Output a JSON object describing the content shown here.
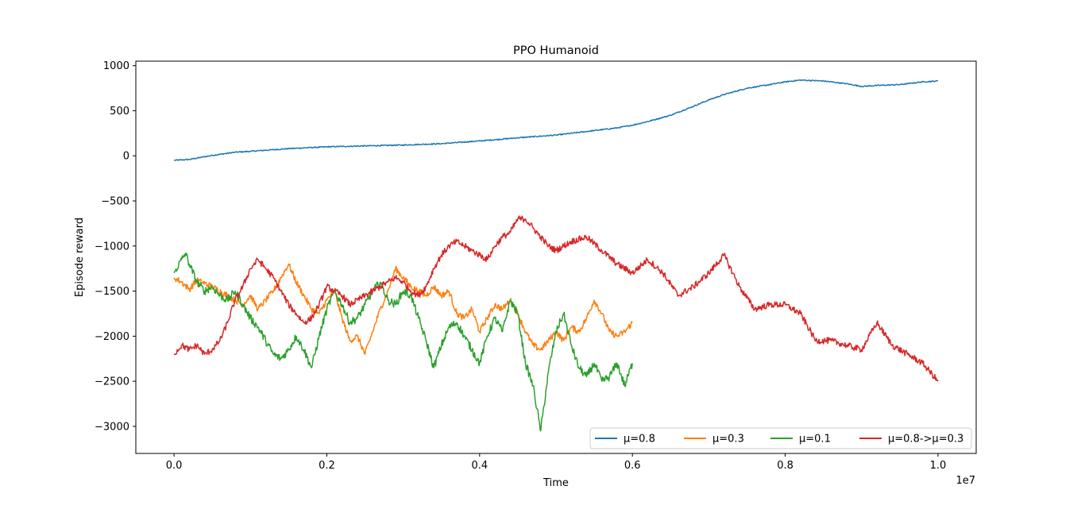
{
  "chart_data": {
    "type": "line",
    "title": "PPO Humanoid",
    "xlabel": "Time",
    "ylabel": "Episode reward",
    "x_offset_label": "1e7",
    "xlim": [
      -0.05,
      1.05
    ],
    "ylim": [
      -3300,
      1050
    ],
    "x_ticks": [
      0.0,
      0.2,
      0.4,
      0.6,
      0.8,
      1.0
    ],
    "x_tick_labels": [
      "0.0",
      "0.2",
      "0.4",
      "0.6",
      "0.8",
      "1.0"
    ],
    "y_ticks": [
      1000,
      500,
      0,
      -500,
      -1000,
      -1500,
      -2000,
      -2500,
      -3000
    ],
    "y_tick_labels": [
      "1000",
      "500",
      "0",
      "−500",
      "−1000",
      "−1500",
      "−2000",
      "−2500",
      "−3000"
    ],
    "grid": false,
    "legend_position": "lower-right",
    "legend_columns": 4,
    "series": [
      {
        "name": "μ=0.8",
        "color": "#1f77b4",
        "x": [
          0.0,
          0.02,
          0.05,
          0.08,
          0.1,
          0.15,
          0.2,
          0.25,
          0.3,
          0.35,
          0.4,
          0.45,
          0.5,
          0.55,
          0.58,
          0.6,
          0.62,
          0.65,
          0.68,
          0.7,
          0.72,
          0.75,
          0.78,
          0.8,
          0.82,
          0.85,
          0.88,
          0.9,
          0.92,
          0.95,
          0.98,
          1.0
        ],
        "y": [
          -50,
          -40,
          5,
          40,
          50,
          80,
          100,
          110,
          120,
          135,
          165,
          200,
          230,
          280,
          310,
          340,
          380,
          450,
          550,
          620,
          680,
          750,
          790,
          820,
          840,
          830,
          800,
          770,
          780,
          790,
          820,
          830
        ]
      },
      {
        "name": "μ=0.3",
        "color": "#ff7f0e",
        "x": [
          0.0,
          0.01,
          0.02,
          0.03,
          0.05,
          0.07,
          0.08,
          0.09,
          0.1,
          0.11,
          0.12,
          0.13,
          0.14,
          0.15,
          0.16,
          0.17,
          0.18,
          0.19,
          0.2,
          0.21,
          0.22,
          0.23,
          0.24,
          0.25,
          0.26,
          0.27,
          0.28,
          0.29,
          0.3,
          0.31,
          0.32,
          0.33,
          0.34,
          0.35,
          0.36,
          0.37,
          0.38,
          0.39,
          0.4,
          0.41,
          0.42,
          0.43,
          0.44,
          0.45,
          0.46,
          0.47,
          0.48,
          0.49,
          0.5,
          0.51,
          0.52,
          0.53,
          0.54,
          0.55,
          0.56,
          0.57,
          0.58,
          0.59,
          0.6
        ],
        "y": [
          -1350,
          -1400,
          -1480,
          -1380,
          -1450,
          -1550,
          -1600,
          -1650,
          -1550,
          -1700,
          -1600,
          -1500,
          -1350,
          -1200,
          -1400,
          -1550,
          -1700,
          -1750,
          -1600,
          -1500,
          -1800,
          -2050,
          -2000,
          -2200,
          -1950,
          -1700,
          -1500,
          -1250,
          -1350,
          -1450,
          -1500,
          -1550,
          -1450,
          -1550,
          -1500,
          -1750,
          -1800,
          -1700,
          -1950,
          -1800,
          -1650,
          -1700,
          -1600,
          -1750,
          -1950,
          -2100,
          -2150,
          -2050,
          -1950,
          -2050,
          -1900,
          -1950,
          -1800,
          -1600,
          -1750,
          -1950,
          -2000,
          -1950,
          -1850
        ]
      },
      {
        "name": "μ=0.1",
        "color": "#2ca02c",
        "x": [
          0.0,
          0.01,
          0.015,
          0.02,
          0.03,
          0.04,
          0.05,
          0.06,
          0.07,
          0.08,
          0.09,
          0.1,
          0.11,
          0.12,
          0.13,
          0.14,
          0.15,
          0.16,
          0.17,
          0.18,
          0.19,
          0.2,
          0.21,
          0.22,
          0.23,
          0.24,
          0.25,
          0.26,
          0.27,
          0.28,
          0.29,
          0.3,
          0.31,
          0.32,
          0.33,
          0.34,
          0.35,
          0.36,
          0.37,
          0.38,
          0.39,
          0.4,
          0.41,
          0.42,
          0.43,
          0.44,
          0.45,
          0.46,
          0.47,
          0.48,
          0.49,
          0.5,
          0.51,
          0.52,
          0.53,
          0.54,
          0.55,
          0.56,
          0.57,
          0.58,
          0.59,
          0.6
        ],
        "y": [
          -1300,
          -1150,
          -1080,
          -1200,
          -1400,
          -1500,
          -1450,
          -1550,
          -1600,
          -1500,
          -1650,
          -1800,
          -1900,
          -2050,
          -2200,
          -2250,
          -2150,
          -2000,
          -2150,
          -2350,
          -2000,
          -1700,
          -1500,
          -1650,
          -1850,
          -1800,
          -1650,
          -1500,
          -1400,
          -1600,
          -1650,
          -1500,
          -1550,
          -1800,
          -2050,
          -2350,
          -2100,
          -1900,
          -1850,
          -2000,
          -2150,
          -2300,
          -2000,
          -1800,
          -1950,
          -1600,
          -1750,
          -2300,
          -2550,
          -3050,
          -2400,
          -1950,
          -1750,
          -2100,
          -2350,
          -2450,
          -2300,
          -2500,
          -2450,
          -2300,
          -2550,
          -2300
        ]
      },
      {
        "name": "μ=0.8->μ=0.3",
        "color": "#d62728",
        "x": [
          0.0,
          0.01,
          0.02,
          0.03,
          0.04,
          0.05,
          0.06,
          0.07,
          0.08,
          0.09,
          0.1,
          0.11,
          0.12,
          0.13,
          0.14,
          0.15,
          0.16,
          0.17,
          0.18,
          0.19,
          0.2,
          0.21,
          0.22,
          0.23,
          0.24,
          0.25,
          0.26,
          0.27,
          0.28,
          0.29,
          0.3,
          0.31,
          0.32,
          0.33,
          0.34,
          0.35,
          0.36,
          0.37,
          0.38,
          0.39,
          0.4,
          0.41,
          0.42,
          0.43,
          0.44,
          0.45,
          0.46,
          0.47,
          0.48,
          0.49,
          0.5,
          0.52,
          0.54,
          0.56,
          0.58,
          0.6,
          0.62,
          0.64,
          0.66,
          0.68,
          0.7,
          0.72,
          0.74,
          0.76,
          0.78,
          0.8,
          0.82,
          0.84,
          0.86,
          0.88,
          0.9,
          0.92,
          0.94,
          0.96,
          0.98,
          1.0
        ],
        "y": [
          -2200,
          -2100,
          -2150,
          -2100,
          -2200,
          -2150,
          -2050,
          -1850,
          -1600,
          -1450,
          -1250,
          -1150,
          -1250,
          -1350,
          -1500,
          -1650,
          -1750,
          -1850,
          -1800,
          -1650,
          -1450,
          -1500,
          -1550,
          -1650,
          -1600,
          -1550,
          -1500,
          -1450,
          -1400,
          -1350,
          -1400,
          -1500,
          -1550,
          -1450,
          -1250,
          -1100,
          -1000,
          -950,
          -1000,
          -1050,
          -1100,
          -1150,
          -1000,
          -900,
          -850,
          -700,
          -700,
          -800,
          -900,
          -1000,
          -1050,
          -950,
          -900,
          -1050,
          -1200,
          -1300,
          -1150,
          -1300,
          -1550,
          -1450,
          -1300,
          -1100,
          -1450,
          -1700,
          -1650,
          -1650,
          -1750,
          -2050,
          -2050,
          -2100,
          -2150,
          -1850,
          -2100,
          -2200,
          -2300,
          -2500
        ]
      }
    ]
  }
}
